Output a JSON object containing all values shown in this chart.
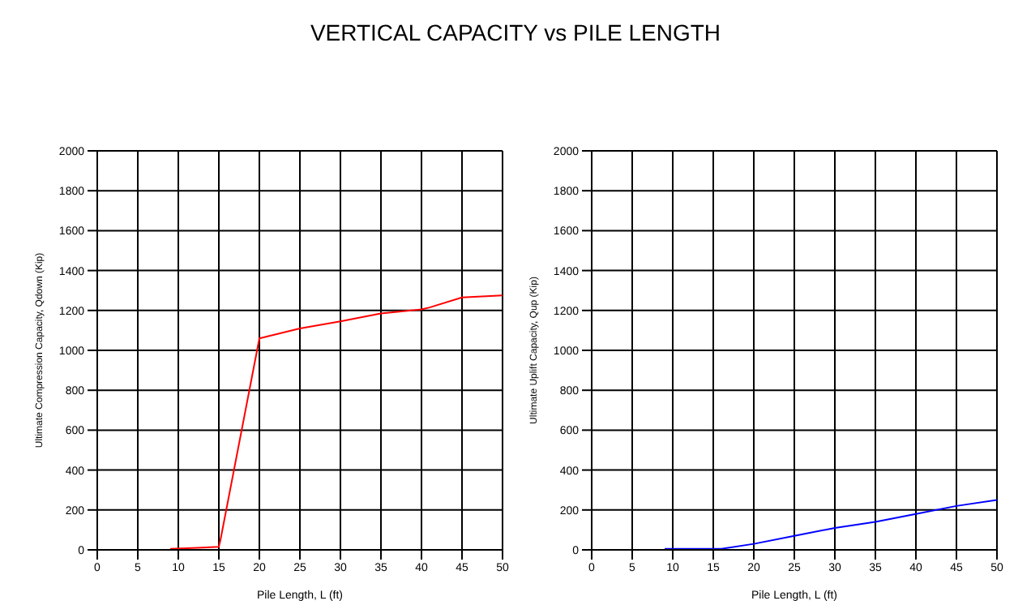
{
  "chart_data": [
    {
      "type": "line",
      "title": "VERTICAL CAPACITY vs PILE LENGTH",
      "xlabel": "Pile Length, L (ft)",
      "ylabel": "Ultimate Compression Capacity, Qdown (Kip)",
      "xlim": [
        0,
        50
      ],
      "ylim": [
        0,
        2000
      ],
      "xticks": [
        0,
        5,
        10,
        15,
        20,
        25,
        30,
        35,
        40,
        45,
        50
      ],
      "yticks": [
        0,
        200,
        400,
        600,
        800,
        1000,
        1200,
        1400,
        1600,
        1800,
        2000
      ],
      "grid": true,
      "legend": false,
      "series": [
        {
          "color": "#ff0000",
          "x": [
            9,
            15,
            15.2,
            20,
            25,
            30,
            35,
            40,
            41,
            45,
            50
          ],
          "values": [
            5,
            15,
            50,
            1060,
            1110,
            1145,
            1185,
            1205,
            1215,
            1265,
            1275
          ]
        }
      ]
    },
    {
      "type": "line",
      "xlabel": "Pile Length, L (ft)",
      "ylabel": "Ultimate Uplift Capacity, Qup (Kip)",
      "xlim": [
        0,
        50
      ],
      "ylim": [
        0,
        2000
      ],
      "xticks": [
        0,
        5,
        10,
        15,
        20,
        25,
        30,
        35,
        40,
        45,
        50
      ],
      "yticks": [
        0,
        200,
        400,
        600,
        800,
        1000,
        1200,
        1400,
        1600,
        1800,
        2000
      ],
      "grid": true,
      "legend": false,
      "series": [
        {
          "color": "#0000ff",
          "x": [
            9,
            16,
            20,
            25,
            30,
            35,
            40,
            45,
            50
          ],
          "values": [
            5,
            5,
            30,
            70,
            110,
            140,
            180,
            220,
            250
          ]
        }
      ]
    }
  ]
}
